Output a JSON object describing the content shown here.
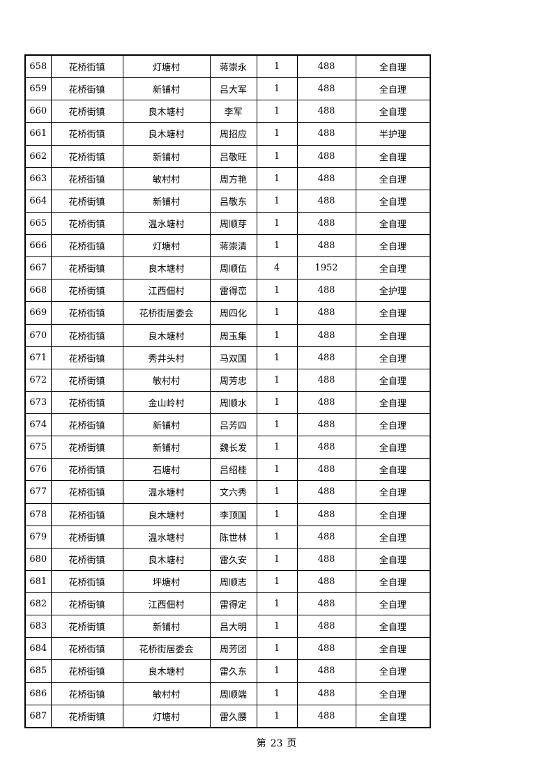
{
  "rows": [
    [
      "658",
      "花桥街镇",
      "灯塘村",
      "蒋崇永",
      "1",
      "488",
      "全自理"
    ],
    [
      "659",
      "花桥街镇",
      "新铺村",
      "吕大军",
      "1",
      "488",
      "全自理"
    ],
    [
      "660",
      "花桥街镇",
      "良木塘村",
      "李军",
      "1",
      "488",
      "全自理"
    ],
    [
      "661",
      "花桥街镇",
      "良木塘村",
      "周招应",
      "1",
      "488",
      "半护理"
    ],
    [
      "662",
      "花桥街镇",
      "新铺村",
      "吕敬旺",
      "1",
      "488",
      "全自理"
    ],
    [
      "663",
      "花桥街镇",
      "敏村村",
      "周方艳",
      "1",
      "488",
      "全自理"
    ],
    [
      "664",
      "花桥街镇",
      "新铺村",
      "吕敬东",
      "1",
      "488",
      "全自理"
    ],
    [
      "665",
      "花桥街镇",
      "温水塘村",
      "周顺芽",
      "1",
      "488",
      "全自理"
    ],
    [
      "666",
      "花桥街镇",
      "灯塘村",
      "蒋崇清",
      "1",
      "488",
      "全自理"
    ],
    [
      "667",
      "花桥街镇",
      "良木塘村",
      "周顺伍",
      "4",
      "1952",
      "全自理"
    ],
    [
      "668",
      "花桥街镇",
      "江西佃村",
      "雷得峦",
      "1",
      "488",
      "全护理"
    ],
    [
      "669",
      "花桥街镇",
      "花桥街居委会",
      "周四化",
      "1",
      "488",
      "全自理"
    ],
    [
      "670",
      "花桥街镇",
      "良木塘村",
      "周玉集",
      "1",
      "488",
      "全自理"
    ],
    [
      "671",
      "花桥街镇",
      "秀井头村",
      "马双国",
      "1",
      "488",
      "全自理"
    ],
    [
      "672",
      "花桥街镇",
      "敏村村",
      "周芳忠",
      "1",
      "488",
      "全自理"
    ],
    [
      "673",
      "花桥街镇",
      "金山岭村",
      "周顺水",
      "1",
      "488",
      "全自理"
    ],
    [
      "674",
      "花桥街镇",
      "新铺村",
      "吕芳四",
      "1",
      "488",
      "全自理"
    ],
    [
      "675",
      "花桥街镇",
      "新铺村",
      "魏长发",
      "1",
      "488",
      "全自理"
    ],
    [
      "676",
      "花桥街镇",
      "石塘村",
      "吕绍桂",
      "1",
      "488",
      "全自理"
    ],
    [
      "677",
      "花桥街镇",
      "温水塘村",
      "文六秀",
      "1",
      "488",
      "全自理"
    ],
    [
      "678",
      "花桥街镇",
      "良木塘村",
      "李顶国",
      "1",
      "488",
      "全自理"
    ],
    [
      "679",
      "花桥街镇",
      "温水塘村",
      "陈世林",
      "1",
      "488",
      "全自理"
    ],
    [
      "680",
      "花桥街镇",
      "良木塘村",
      "雷久安",
      "1",
      "488",
      "全自理"
    ],
    [
      "681",
      "花桥街镇",
      "坪塘村",
      "周顺志",
      "1",
      "488",
      "全自理"
    ],
    [
      "682",
      "花桥街镇",
      "江西佃村",
      "雷得定",
      "1",
      "488",
      "全自理"
    ],
    [
      "683",
      "花桥街镇",
      "新铺村",
      "吕大明",
      "1",
      "488",
      "全自理"
    ],
    [
      "684",
      "花桥街镇",
      "花桥街居委会",
      "周芳团",
      "1",
      "488",
      "全自理"
    ],
    [
      "685",
      "花桥街镇",
      "良木塘村",
      "雷久东",
      "1",
      "488",
      "全自理"
    ],
    [
      "686",
      "花桥街镇",
      "敏村村",
      "周顺端",
      "1",
      "488",
      "全自理"
    ],
    [
      "687",
      "花桥街镇",
      "灯塘村",
      "雷久腰",
      "1",
      "488",
      "全自理"
    ]
  ],
  "footer": {
    "prefix": "第",
    "page": "23",
    "suffix": "页"
  }
}
